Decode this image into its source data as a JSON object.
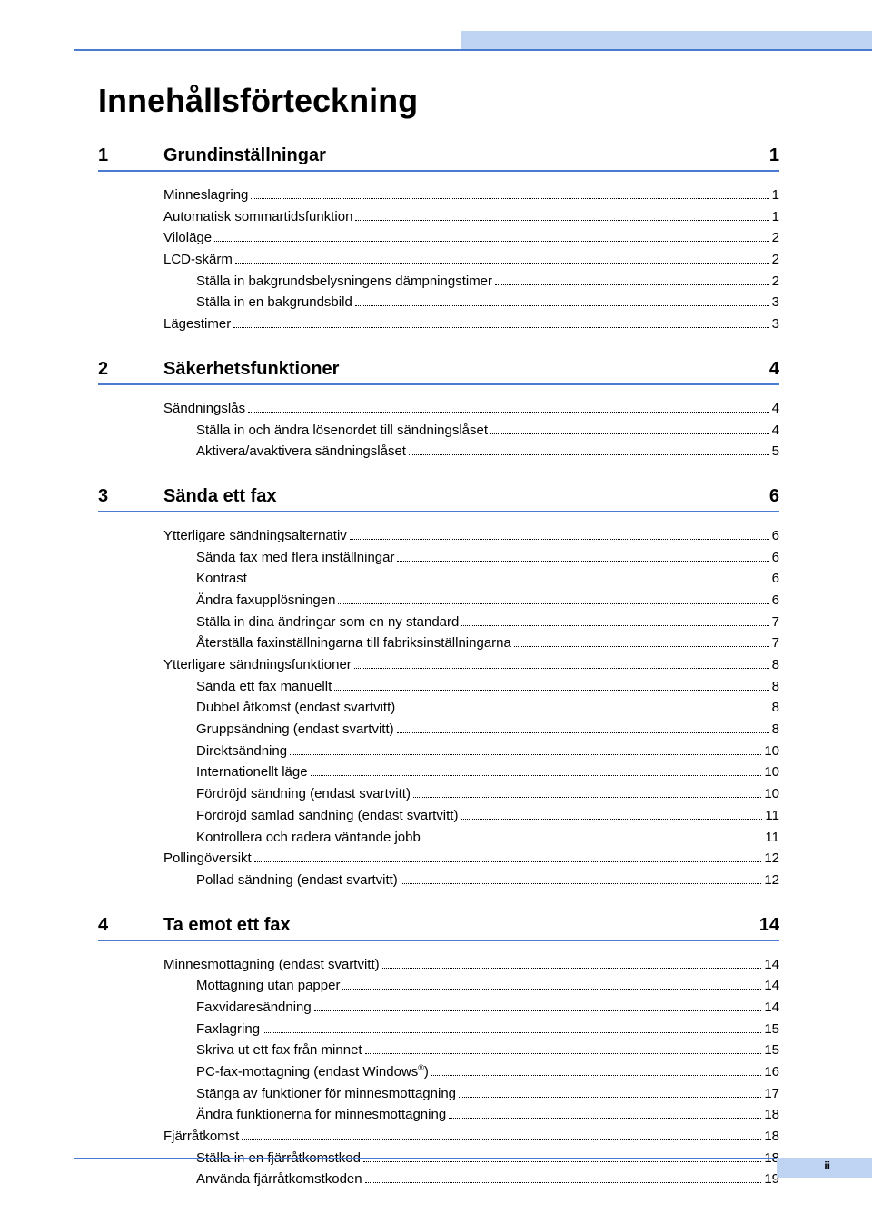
{
  "colors": {
    "accent": "#4a7bd0",
    "strip": "#bfd3f2",
    "text": "#000000",
    "bg": "#ffffff"
  },
  "typography": {
    "title_pt": 36,
    "section_pt": 20,
    "entry_pt": 15
  },
  "title": "Innehållsförteckning",
  "page_number": "ii",
  "sections": [
    {
      "num": "1",
      "title": "Grundinställningar",
      "page": "1",
      "entries": [
        {
          "level": 1,
          "label": "Minneslagring",
          "page": "1"
        },
        {
          "level": 1,
          "label": "Automatisk sommartidsfunktion",
          "page": "1"
        },
        {
          "level": 1,
          "label": "Viloläge",
          "page": "2"
        },
        {
          "level": 1,
          "label": "LCD-skärm",
          "page": "2"
        },
        {
          "level": 2,
          "label": "Ställa in bakgrundsbelysningens dämpningstimer",
          "page": "2"
        },
        {
          "level": 2,
          "label": "Ställa in en bakgrundsbild",
          "page": "3"
        },
        {
          "level": 1,
          "label": "Lägestimer",
          "page": "3"
        }
      ]
    },
    {
      "num": "2",
      "title": "Säkerhetsfunktioner",
      "page": "4",
      "entries": [
        {
          "level": 1,
          "label": "Sändningslås",
          "page": "4"
        },
        {
          "level": 2,
          "label": "Ställa in och ändra lösenordet till sändningslåset",
          "page": "4"
        },
        {
          "level": 2,
          "label": "Aktivera/avaktivera sändningslåset",
          "page": "5"
        }
      ]
    },
    {
      "num": "3",
      "title": "Sända ett fax",
      "page": "6",
      "entries": [
        {
          "level": 1,
          "label": "Ytterligare sändningsalternativ",
          "page": "6"
        },
        {
          "level": 2,
          "label": "Sända fax med flera inställningar",
          "page": "6"
        },
        {
          "level": 2,
          "label": "Kontrast",
          "page": "6"
        },
        {
          "level": 2,
          "label": "Ändra faxupplösningen",
          "page": "6"
        },
        {
          "level": 2,
          "label": "Ställa in dina ändringar som en ny standard",
          "page": "7"
        },
        {
          "level": 2,
          "label": "Återställa faxinställningarna till fabriksinställningarna",
          "page": "7"
        },
        {
          "level": 1,
          "label": "Ytterligare sändningsfunktioner",
          "page": "8"
        },
        {
          "level": 2,
          "label": "Sända ett fax manuellt",
          "page": "8"
        },
        {
          "level": 2,
          "label": "Dubbel åtkomst (endast svartvitt)",
          "page": "8"
        },
        {
          "level": 2,
          "label": "Gruppsändning (endast svartvitt)",
          "page": "8"
        },
        {
          "level": 2,
          "label": "Direktsändning",
          "page": "10"
        },
        {
          "level": 2,
          "label": "Internationellt läge",
          "page": "10"
        },
        {
          "level": 2,
          "label": "Fördröjd sändning (endast svartvitt)",
          "page": "10"
        },
        {
          "level": 2,
          "label": "Fördröjd samlad sändning (endast svartvitt)",
          "page": "11"
        },
        {
          "level": 2,
          "label": "Kontrollera och radera väntande jobb",
          "page": "11"
        },
        {
          "level": 1,
          "label": "Pollingöversikt",
          "page": "12"
        },
        {
          "level": 2,
          "label": "Pollad sändning (endast svartvitt)",
          "page": "12"
        }
      ]
    },
    {
      "num": "4",
      "title": "Ta emot ett fax",
      "page": "14",
      "entries": [
        {
          "level": 1,
          "label": "Minnesmottagning (endast svartvitt)",
          "page": "14"
        },
        {
          "level": 2,
          "label": "Mottagning utan papper",
          "page": "14"
        },
        {
          "level": 2,
          "label": "Faxvidaresändning",
          "page": "14"
        },
        {
          "level": 2,
          "label": "Faxlagring",
          "page": "15"
        },
        {
          "level": 2,
          "label": "Skriva ut ett fax från minnet",
          "page": "15"
        },
        {
          "level": 2,
          "label": "PC-fax-mottagning (endast Windows",
          "sup": "®",
          "suffix": ")",
          "page": "16"
        },
        {
          "level": 2,
          "label": "Stänga av funktioner för minnesmottagning",
          "page": "17"
        },
        {
          "level": 2,
          "label": "Ändra funktionerna för minnesmottagning",
          "page": "18"
        },
        {
          "level": 1,
          "label": "Fjärråtkomst",
          "page": "18"
        },
        {
          "level": 2,
          "label": "Ställa in en fjärråtkomstkod",
          "page": "18"
        },
        {
          "level": 2,
          "label": "Använda fjärråtkomstkoden",
          "page": "19"
        }
      ]
    }
  ]
}
